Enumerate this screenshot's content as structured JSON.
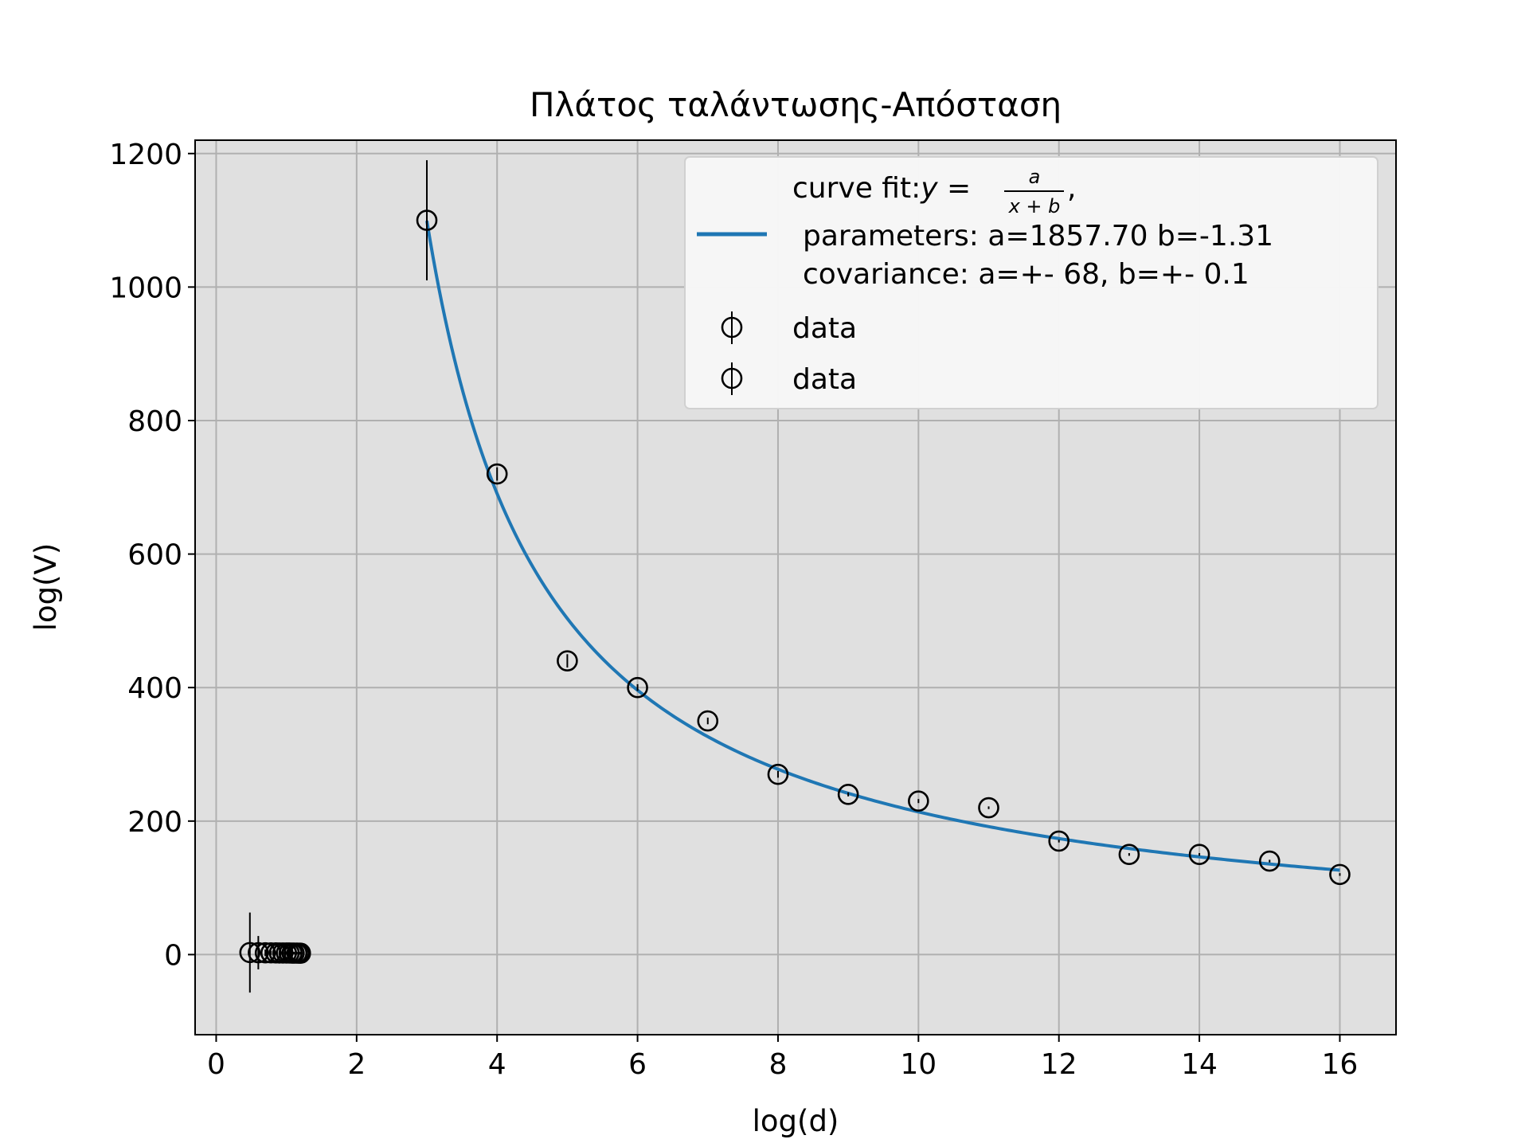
{
  "chart_data": {
    "type": "scatter",
    "title": "Πλάτος ταλάντωσης-Απόσταση",
    "xlabel": "log(d)",
    "ylabel": "log(V)",
    "xlim": [
      -0.3,
      16.8
    ],
    "ylim": [
      -120,
      1220
    ],
    "xticks": [
      0,
      2,
      4,
      6,
      8,
      10,
      12,
      14,
      16
    ],
    "yticks": [
      0,
      200,
      400,
      600,
      800,
      1000,
      1200
    ],
    "grid": true,
    "legend_position": "top-right",
    "legend": {
      "fit_label_prefix": "curve fit:",
      "fit_formula_lhs": "y = ",
      "fit_formula_num": "a",
      "fit_formula_den": "x + b",
      "fit_formula_suffix": ",",
      "fit_parameters": "parameters: a=1857.70 b=-1.31",
      "fit_covariance": "covariance: a=+- 68, b=+- 0.1",
      "data_label_1": "data",
      "data_label_2": "data"
    },
    "series": [
      {
        "name": "curve fit",
        "kind": "line",
        "color": "#1f77b4",
        "a": 1857.7,
        "b": -1.31,
        "x_range": [
          3,
          16
        ]
      },
      {
        "name": "data",
        "kind": "errorbar",
        "marker": "open-circle",
        "color": "#000000",
        "x": [
          3,
          4,
          5,
          6,
          7,
          8,
          9,
          10,
          11,
          12,
          13,
          14,
          15,
          16
        ],
        "y": [
          1100,
          720,
          440,
          400,
          350,
          270,
          240,
          230,
          220,
          170,
          150,
          150,
          140,
          120
        ],
        "yerr": [
          90,
          10,
          10,
          5,
          5,
          5,
          3,
          3,
          2,
          2,
          2,
          2,
          2,
          2
        ]
      },
      {
        "name": "data",
        "kind": "errorbar",
        "marker": "open-circle",
        "color": "#000000",
        "x": [
          0.48,
          0.6,
          0.7,
          0.78,
          0.85,
          0.9,
          0.95,
          1.0,
          1.04,
          1.08,
          1.11,
          1.15,
          1.18,
          1.2
        ],
        "y": [
          3.04,
          2.86,
          2.64,
          2.6,
          2.54,
          2.43,
          2.38,
          2.36,
          2.34,
          2.23,
          2.18,
          2.18,
          2.15,
          2.08
        ],
        "yerr": [
          60,
          25,
          5,
          3,
          2,
          2,
          2,
          2,
          2,
          2,
          2,
          2,
          2,
          2
        ]
      }
    ]
  }
}
